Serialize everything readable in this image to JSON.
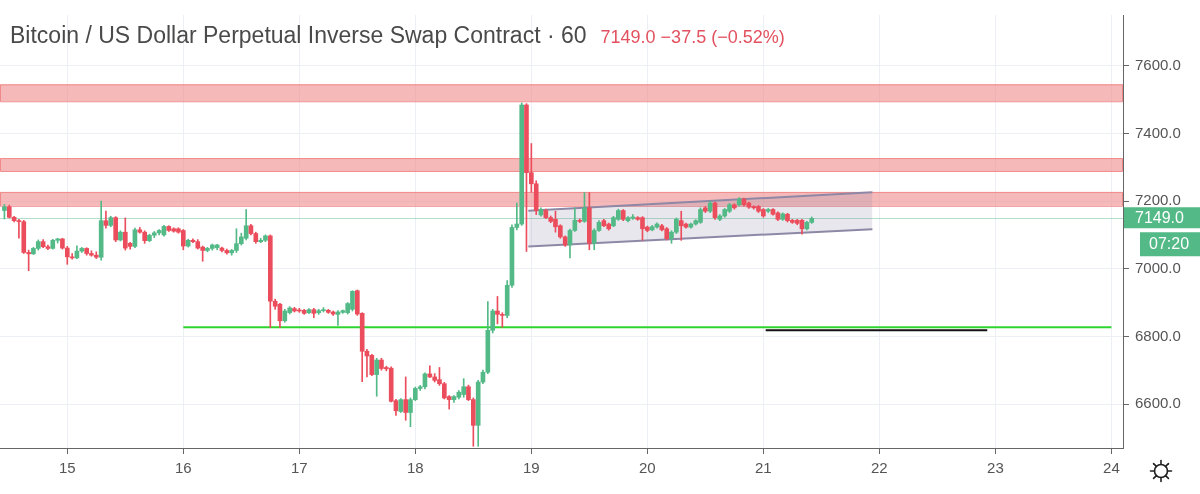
{
  "chart_data": {
    "type": "candlestick",
    "title": "Bitcoin / US Dollar Perpetual Inverse Swap Contract · 60",
    "subtitle": "7149.0 −37.5 (−0.52%)",
    "x": [
      14.458,
      14.5,
      14.542,
      14.583,
      14.625,
      14.667,
      14.708,
      14.75,
      14.792,
      14.833,
      14.875,
      14.917,
      14.958,
      15,
      15.042,
      15.083,
      15.125,
      15.167,
      15.208,
      15.25,
      15.292,
      15.333,
      15.375,
      15.417,
      15.458,
      15.5,
      15.542,
      15.583,
      15.625,
      15.667,
      15.708,
      15.75,
      15.792,
      15.833,
      15.875,
      15.917,
      15.958,
      16,
      16.042,
      16.083,
      16.125,
      16.167,
      16.208,
      16.25,
      16.292,
      16.333,
      16.375,
      16.417,
      16.458,
      16.5,
      16.542,
      16.583,
      16.625,
      16.667,
      16.708,
      16.75,
      16.792,
      16.833,
      16.875,
      16.917,
      16.958,
      17,
      17.042,
      17.083,
      17.125,
      17.167,
      17.208,
      17.25,
      17.292,
      17.333,
      17.375,
      17.417,
      17.458,
      17.5,
      17.542,
      17.583,
      17.625,
      17.667,
      17.708,
      17.75,
      17.792,
      17.833,
      17.875,
      17.917,
      17.958,
      18,
      18.042,
      18.083,
      18.125,
      18.167,
      18.208,
      18.25,
      18.292,
      18.333,
      18.375,
      18.417,
      18.458,
      18.5,
      18.542,
      18.583,
      18.625,
      18.667,
      18.708,
      18.75,
      18.792,
      18.833,
      18.875,
      18.917,
      18.958,
      19,
      19.042,
      19.083,
      19.125,
      19.167,
      19.208,
      19.25,
      19.292,
      19.333,
      19.375,
      19.417,
      19.458,
      19.5,
      19.542,
      19.583,
      19.625,
      19.667,
      19.708,
      19.75,
      19.792,
      19.833,
      19.875,
      19.917,
      19.958,
      20,
      20.042,
      20.083,
      20.125,
      20.167,
      20.208,
      20.25,
      20.292,
      20.333,
      20.375,
      20.417,
      20.458,
      20.5,
      20.542,
      20.583,
      20.625,
      20.667,
      20.708,
      20.75,
      20.792,
      20.833,
      20.875,
      20.917,
      20.958,
      21,
      21.042,
      21.083,
      21.125,
      21.167,
      21.208,
      21.25,
      21.292,
      21.333,
      21.375,
      21.417
    ],
    "ohlc": [
      [
        7172,
        7190,
        7147,
        7183
      ],
      [
        7183,
        7188,
        7150,
        7152
      ],
      [
        7152,
        7155,
        7138,
        7142
      ],
      [
        7142,
        7146,
        7090,
        7139
      ],
      [
        7139,
        7143,
        7045,
        7048
      ],
      [
        7048,
        7055,
        6994,
        7044
      ],
      [
        7044,
        7063,
        7042,
        7060
      ],
      [
        7060,
        7085,
        7055,
        7080
      ],
      [
        7080,
        7086,
        7062,
        7065
      ],
      [
        7065,
        7070,
        7056,
        7060
      ],
      [
        7060,
        7087,
        7058,
        7084
      ],
      [
        7084,
        7090,
        7076,
        7088
      ],
      [
        7088,
        7090,
        7058,
        7061
      ],
      [
        7061,
        7066,
        7013,
        7035
      ],
      [
        7035,
        7045,
        7028,
        7032
      ],
      [
        7032,
        7068,
        7030,
        7052
      ],
      [
        7052,
        7063,
        7048,
        7060
      ],
      [
        7060,
        7062,
        7040,
        7045
      ],
      [
        7045,
        7053,
        7037,
        7040
      ],
      [
        7040,
        7050,
        7030,
        7034
      ],
      [
        7034,
        7200,
        7025,
        7142
      ],
      [
        7142,
        7170,
        7120,
        7128
      ],
      [
        7128,
        7155,
        7124,
        7151
      ],
      [
        7151,
        7154,
        7080,
        7085
      ],
      [
        7085,
        7112,
        7082,
        7108
      ],
      [
        7108,
        7150,
        7055,
        7061
      ],
      [
        7075,
        7078,
        7058,
        7066
      ],
      [
        7066,
        7120,
        7062,
        7115
      ],
      [
        7115,
        7122,
        7105,
        7108
      ],
      [
        7108,
        7112,
        7075,
        7083
      ],
      [
        7083,
        7102,
        7080,
        7099
      ],
      [
        7099,
        7110,
        7092,
        7106
      ],
      [
        7106,
        7116,
        7100,
        7113
      ],
      [
        7100,
        7128,
        7096,
        7125
      ],
      [
        7125,
        7127,
        7110,
        7113
      ],
      [
        7118,
        7121,
        7108,
        7111
      ],
      [
        7118,
        7121,
        7105,
        7108
      ],
      [
        7113,
        7116,
        7056,
        7067
      ],
      [
        7067,
        7087,
        7064,
        7084
      ],
      [
        7084,
        7088,
        7077,
        7080
      ],
      [
        7080,
        7086,
        7058,
        7061
      ],
      [
        7064,
        7067,
        7022,
        7054
      ],
      [
        7054,
        7063,
        7050,
        7060
      ],
      [
        7060,
        7073,
        7055,
        7070
      ],
      [
        7062,
        7072,
        7056,
        7070
      ],
      [
        7061,
        7064,
        7050,
        7054
      ],
      [
        7054,
        7058,
        7043,
        7047
      ],
      [
        7047,
        7057,
        7040,
        7054
      ],
      [
        7054,
        7118,
        7048,
        7074
      ],
      [
        7074,
        7105,
        7070,
        7094
      ],
      [
        7090,
        7175,
        7085,
        7127
      ],
      [
        7127,
        7131,
        7100,
        7104
      ],
      [
        7104,
        7108,
        7075,
        7080
      ],
      [
        7080,
        7090,
        7077,
        7084
      ],
      [
        7084,
        7100,
        7080,
        7097
      ],
      [
        7097,
        7100,
        6826,
        6904
      ],
      [
        6904,
        6910,
        6880,
        6889
      ],
      [
        6895,
        6898,
        6826,
        6846
      ],
      [
        6846,
        6880,
        6842,
        6875
      ],
      [
        6870,
        6888,
        6866,
        6884
      ],
      [
        6882,
        6886,
        6872,
        6875
      ],
      [
        6877,
        6883,
        6871,
        6875
      ],
      [
        6877,
        6880,
        6865,
        6868
      ],
      [
        6870,
        6882,
        6867,
        6879
      ],
      [
        6879,
        6883,
        6855,
        6868
      ],
      [
        6870,
        6880,
        6865,
        6876
      ],
      [
        6876,
        6885,
        6872,
        6878
      ],
      [
        6877,
        6880,
        6868,
        6871
      ],
      [
        6872,
        6875,
        6862,
        6866
      ],
      [
        6865,
        6876,
        6832,
        6872
      ],
      [
        6871,
        6878,
        6868,
        6876
      ],
      [
        6870,
        6900,
        6866,
        6897
      ],
      [
        6880,
        6935,
        6875,
        6933
      ],
      [
        6935,
        6937,
        6862,
        6866
      ],
      [
        6868,
        6870,
        6666,
        6756
      ],
      [
        6756,
        6762,
        6680,
        6742
      ],
      [
        6744,
        6747,
        6684,
        6687
      ],
      [
        6687,
        6735,
        6623,
        6730
      ],
      [
        6730,
        6735,
        6700,
        6705
      ],
      [
        6708,
        6712,
        6698,
        6704
      ],
      [
        6706,
        6710,
        6606,
        6608
      ],
      [
        6610,
        6614,
        6566,
        6580
      ],
      [
        6578,
        6616,
        6575,
        6613
      ],
      [
        6613,
        6680,
        6552,
        6575
      ],
      [
        6575,
        6618,
        6533,
        6613
      ],
      [
        6613,
        6650,
        6610,
        6646
      ],
      [
        6646,
        6655,
        6640,
        6651
      ],
      [
        6651,
        6692,
        6645,
        6689
      ],
      [
        6689,
        6713,
        6678,
        6680
      ],
      [
        6680,
        6690,
        6665,
        6670
      ],
      [
        6672,
        6708,
        6655,
        6660
      ],
      [
        6660,
        6664,
        6615,
        6618
      ],
      [
        6622,
        6625,
        6585,
        6613
      ],
      [
        6613,
        6625,
        6605,
        6622
      ],
      [
        6620,
        6640,
        6615,
        6635
      ],
      [
        6628,
        6675,
        6620,
        6651
      ],
      [
        6651,
        6656,
        6610,
        6613
      ],
      [
        6613,
        6618,
        6475,
        6537
      ],
      [
        6537,
        6670,
        6475,
        6665
      ],
      [
        6665,
        6700,
        6660,
        6694
      ],
      [
        6694,
        6903,
        6690,
        6818
      ],
      [
        6818,
        6880,
        6810,
        6875
      ],
      [
        6875,
        6918,
        6837,
        6865
      ],
      [
        6865,
        6870,
        6827,
        6862
      ],
      [
        6862,
        6965,
        6855,
        6951
      ],
      [
        6951,
        7130,
        6945,
        7122
      ],
      [
        7122,
        7194,
        7115,
        7132
      ],
      [
        7132,
        7490,
        7128,
        7484
      ],
      [
        7484,
        7488,
        7051,
        7284
      ],
      [
        7284,
        7370,
        7227,
        7251
      ],
      [
        7251,
        7260,
        7160,
        7172
      ],
      [
        7159,
        7180,
        7155,
        7175
      ],
      [
        7172,
        7176,
        7148,
        7151
      ],
      [
        7151,
        7156,
        7136,
        7140
      ],
      [
        7146,
        7170,
        7108,
        7124
      ],
      [
        7127,
        7130,
        7090,
        7094
      ],
      [
        7094,
        7097,
        7066,
        7070
      ],
      [
        7070,
        7117,
        7032,
        7113
      ],
      [
        7113,
        7180,
        7110,
        7143
      ],
      [
        7143,
        7147,
        7136,
        7140
      ],
      [
        7140,
        7225,
        7137,
        7180
      ],
      [
        7180,
        7225,
        7056,
        7075
      ],
      [
        7075,
        7118,
        7056,
        7113
      ],
      [
        7113,
        7142,
        7110,
        7137
      ],
      [
        7142,
        7146,
        7124,
        7127
      ],
      [
        7132,
        7135,
        7114,
        7118
      ],
      [
        7127,
        7155,
        7124,
        7151
      ],
      [
        7146,
        7176,
        7143,
        7172
      ],
      [
        7172,
        7175,
        7142,
        7146
      ],
      [
        7142,
        7154,
        7138,
        7151
      ],
      [
        7149,
        7160,
        7146,
        7153
      ],
      [
        7151,
        7154,
        7143,
        7146
      ],
      [
        7151,
        7154,
        7084,
        7118
      ],
      [
        7123,
        7126,
        7109,
        7113
      ],
      [
        7115,
        7128,
        7112,
        7124
      ],
      [
        7123,
        7136,
        7120,
        7132
      ],
      [
        7127,
        7131,
        7112,
        7115
      ],
      [
        7118,
        7122,
        7085,
        7089
      ],
      [
        7089,
        7112,
        7075,
        7108
      ],
      [
        7108,
        7150,
        7104,
        7146
      ],
      [
        7142,
        7170,
        7084,
        7127
      ],
      [
        7132,
        7135,
        7120,
        7123
      ],
      [
        7123,
        7135,
        7120,
        7132
      ],
      [
        7132,
        7145,
        7129,
        7142
      ],
      [
        7137,
        7180,
        7134,
        7175
      ],
      [
        7180,
        7184,
        7166,
        7170
      ],
      [
        7170,
        7199,
        7166,
        7194
      ],
      [
        7194,
        7197,
        7146,
        7151
      ],
      [
        7146,
        7160,
        7142,
        7156
      ],
      [
        7156,
        7178,
        7152,
        7175
      ],
      [
        7170,
        7193,
        7166,
        7189
      ],
      [
        7189,
        7192,
        7176,
        7180
      ],
      [
        7189,
        7210,
        7185,
        7206
      ],
      [
        7206,
        7209,
        7185,
        7189
      ],
      [
        7194,
        7197,
        7178,
        7182
      ],
      [
        7184,
        7186,
        7176,
        7180
      ],
      [
        7184,
        7187,
        7166,
        7170
      ],
      [
        7175,
        7178,
        7152,
        7156
      ],
      [
        7170,
        7178,
        7166,
        7175
      ],
      [
        7175,
        7178,
        7158,
        7161
      ],
      [
        7165,
        7168,
        7142,
        7146
      ],
      [
        7146,
        7165,
        7143,
        7162
      ],
      [
        7161,
        7164,
        7138,
        7142
      ],
      [
        7143,
        7146,
        7134,
        7137
      ],
      [
        7143,
        7146,
        7130,
        7134
      ],
      [
        7143,
        7146,
        7102,
        7118
      ],
      [
        7118,
        7140,
        7115,
        7137
      ],
      [
        7137,
        7153,
        7134,
        7149
      ]
    ],
    "colors": [
      "#53b987",
      "#eb4d5c",
      "#eb4d5c",
      "#eb4d5c",
      "#eb4d5c",
      "#eb4d5c",
      "#53b987",
      "#53b987",
      "#eb4d5c",
      "#eb4d5c",
      "#53b987",
      "#53b987",
      "#eb4d5c",
      "#eb4d5c",
      "#eb4d5c",
      "#53b987",
      "#53b987",
      "#eb4d5c",
      "#eb4d5c",
      "#eb4d5c",
      "#53b987",
      "#eb4d5c",
      "#53b987",
      "#eb4d5c",
      "#53b987",
      "#eb4d5c",
      "#eb4d5c",
      "#53b987",
      "#eb4d5c",
      "#eb4d5c",
      "#53b987",
      "#53b987",
      "#53b987",
      "#53b987",
      "#eb4d5c",
      "#eb4d5c",
      "#eb4d5c",
      "#eb4d5c",
      "#53b987",
      "#eb4d5c",
      "#eb4d5c",
      "#eb4d5c",
      "#53b987",
      "#53b987",
      "#53b987",
      "#eb4d5c",
      "#eb4d5c",
      "#53b987",
      "#53b987",
      "#53b987",
      "#53b987",
      "#eb4d5c",
      "#eb4d5c",
      "#53b987",
      "#53b987",
      "#eb4d5c",
      "#eb4d5c",
      "#eb4d5c",
      "#53b987",
      "#53b987",
      "#eb4d5c",
      "#eb4d5c",
      "#eb4d5c",
      "#53b987",
      "#eb4d5c",
      "#53b987",
      "#53b987",
      "#eb4d5c",
      "#eb4d5c",
      "#53b987",
      "#53b987",
      "#53b987",
      "#53b987",
      "#eb4d5c",
      "#eb4d5c",
      "#eb4d5c",
      "#eb4d5c",
      "#53b987",
      "#eb4d5c",
      "#eb4d5c",
      "#eb4d5c",
      "#eb4d5c",
      "#53b987",
      "#eb4d5c",
      "#53b987",
      "#53b987",
      "#53b987",
      "#53b987",
      "#eb4d5c",
      "#eb4d5c",
      "#eb4d5c",
      "#eb4d5c",
      "#eb4d5c",
      "#53b987",
      "#53b987",
      "#53b987",
      "#eb4d5c",
      "#eb4d5c",
      "#53b987",
      "#53b987",
      "#53b987",
      "#53b987",
      "#eb4d5c",
      "#eb4d5c",
      "#53b987",
      "#53b987",
      "#53b987",
      "#53b987",
      "#eb4d5c",
      "#eb4d5c",
      "#eb4d5c",
      "#53b987",
      "#eb4d5c",
      "#eb4d5c",
      "#eb4d5c",
      "#eb4d5c",
      "#eb4d5c",
      "#53b987",
      "#53b987",
      "#eb4d5c",
      "#53b987",
      "#eb4d5c",
      "#53b987",
      "#53b987",
      "#eb4d5c",
      "#eb4d5c",
      "#53b987",
      "#53b987",
      "#eb4d5c",
      "#53b987",
      "#53b987",
      "#eb4d5c",
      "#eb4d5c",
      "#eb4d5c",
      "#53b987",
      "#53b987",
      "#eb4d5c",
      "#eb4d5c",
      "#53b987",
      "#53b987",
      "#eb4d5c",
      "#eb4d5c",
      "#53b987",
      "#53b987",
      "#53b987",
      "#eb4d5c",
      "#53b987",
      "#eb4d5c",
      "#53b987",
      "#53b987",
      "#53b987",
      "#eb4d5c",
      "#53b987",
      "#eb4d5c",
      "#eb4d5c",
      "#eb4d5c",
      "#eb4d5c",
      "#eb4d5c",
      "#53b987",
      "#eb4d5c",
      "#eb4d5c",
      "#53b987",
      "#eb4d5c",
      "#eb4d5c",
      "#eb4d5c",
      "#eb4d5c",
      "#53b987",
      "#53b987"
    ],
    "series": [
      {
        "type": "line",
        "x": [
          18.974,
          21.94
        ],
        "values": [
          7066,
          7117
        ],
        "color": "#8e88a6"
      },
      {
        "type": "area",
        "x": [
          18.974,
          21.94
        ],
        "values": [
          7171,
          7226
        ],
        "color": "#8e88a6"
      },
      {
        "type": "line",
        "x": [
          16,
          24
        ],
        "values": [
          6827,
          6827
        ],
        "color": "#2fd42f"
      },
      {
        "type": "line",
        "x": [
          21.02,
          22.93
        ],
        "values": [
          6818,
          6818
        ],
        "color": "#111111"
      }
    ],
    "bands": [
      {
        "axis": "y",
        "from": 7495,
        "to": 7545,
        "color": "#f08a8a"
      },
      {
        "axis": "y",
        "from": 7289,
        "to": 7327,
        "color": "#f08a8a"
      },
      {
        "axis": "y",
        "from": 7186,
        "to": 7227,
        "color": "#f08a8a"
      }
    ],
    "ref_lines": [
      {
        "axis": "y",
        "value": 7149,
        "label": "7149.0",
        "color": "#53b987"
      }
    ],
    "annotations": [
      "07:20"
    ],
    "xlim": [
      14.42,
      24.1
    ],
    "xticks": [
      15,
      16,
      17,
      18,
      19,
      20,
      21,
      22,
      23,
      24
    ],
    "ylim": [
      6470,
      7750
    ],
    "yticks": [
      {
        "value": 6600,
        "label": "6600.0"
      },
      {
        "value": 6800,
        "label": "6800.0"
      },
      {
        "value": 7000,
        "label": "7000.0"
      },
      {
        "value": 7200,
        "label": "7200.0"
      },
      {
        "value": 7400,
        "label": "7400.0"
      },
      {
        "value": 7600,
        "label": "7600.0"
      }
    ],
    "grid": true
  }
}
